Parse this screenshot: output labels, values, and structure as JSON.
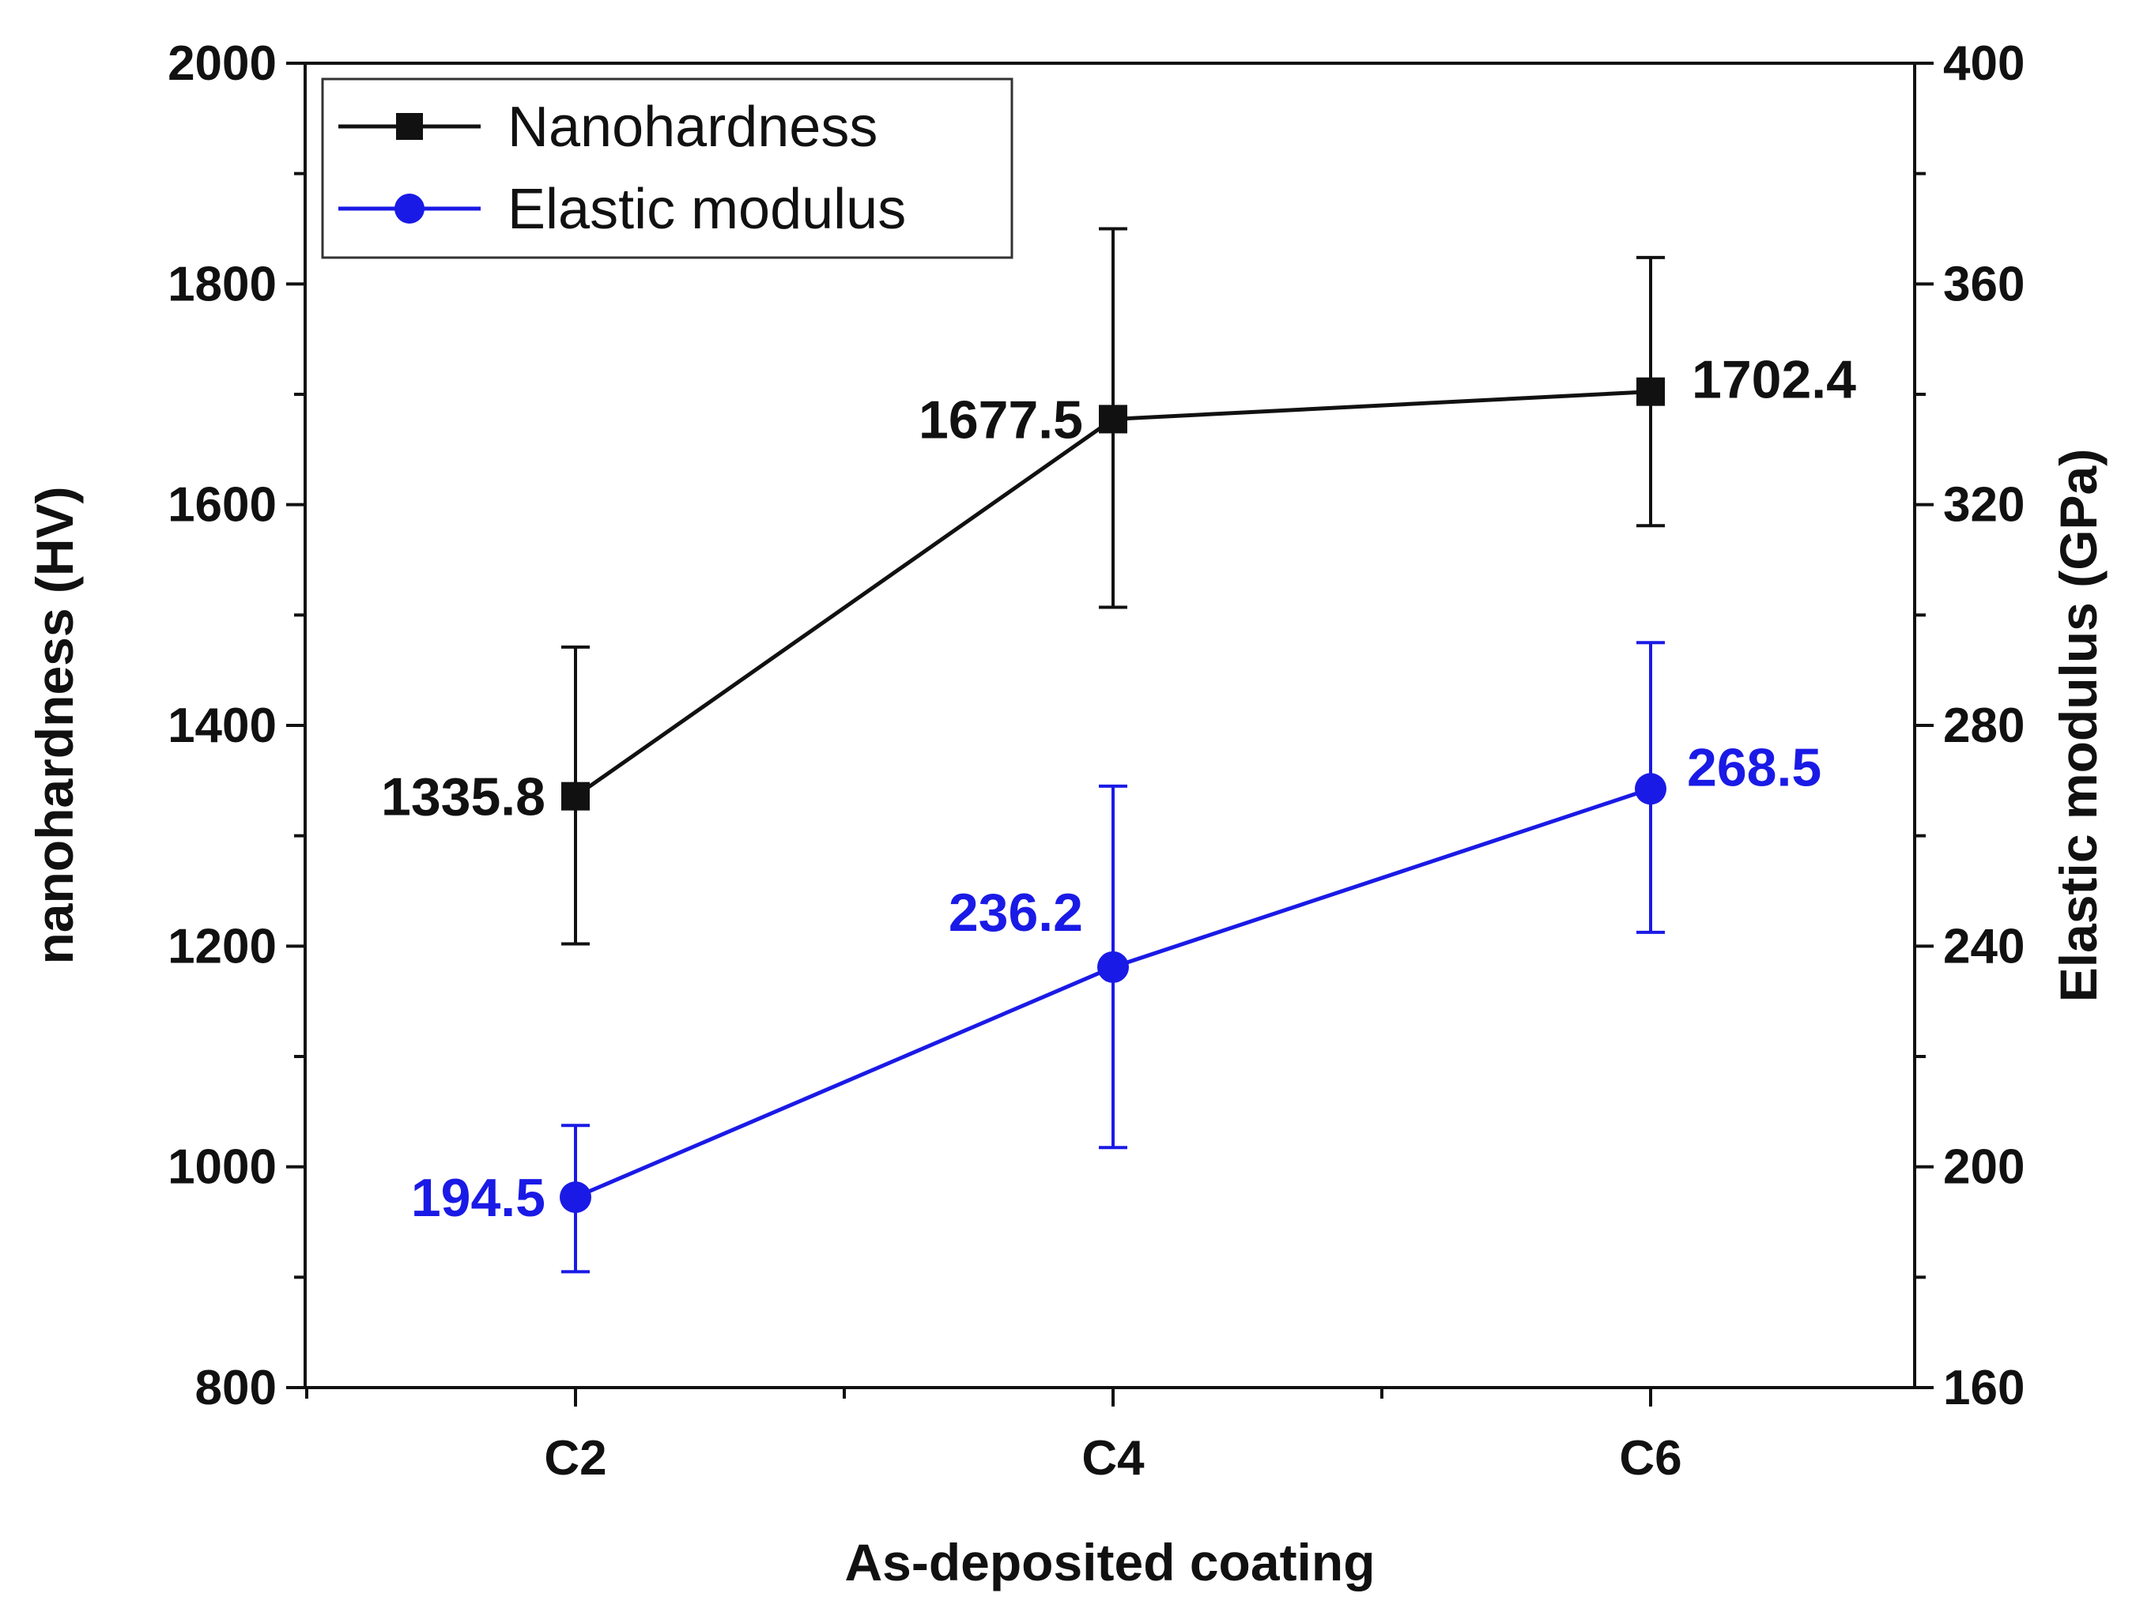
{
  "chart_data": {
    "type": "line",
    "categories": [
      "C2",
      "C4",
      "C6"
    ],
    "xlabel": "As-deposited coating",
    "y_left": {
      "label": "nanohardness (HV)",
      "range": [
        800,
        2000
      ],
      "major_ticks": [
        800,
        1000,
        1200,
        1400,
        1600,
        1800,
        2000
      ],
      "minor_step": 100
    },
    "y_right": {
      "label": "Elastic modulus (GPa)",
      "range": [
        160,
        400
      ],
      "major_ticks": [
        160,
        200,
        240,
        280,
        320,
        360,
        400
      ],
      "minor_step": 20
    },
    "series": [
      {
        "name": "Nanohardness",
        "axis": "left",
        "color": "#111111",
        "marker": "square",
        "values": [
          1335.8,
          1677.5,
          1702.4
        ],
        "err_low": [
          1202,
          1507,
          1581
        ],
        "err_high": [
          1471,
          1850,
          1824
        ],
        "labels": [
          "1335.8",
          "1677.5",
          "1702.4"
        ],
        "label_side": [
          "left",
          "left",
          "right"
        ]
      },
      {
        "name": "Elastic modulus",
        "axis": "right",
        "color": "#1a1ae6",
        "marker": "circle",
        "values": [
          194.5,
          236.2,
          268.5
        ],
        "err_low": [
          181,
          203.5,
          242.5
        ],
        "err_high": [
          207.5,
          269,
          295
        ],
        "labels": [
          "194.5",
          "236.2",
          "268.5"
        ],
        "label_side": [
          "left",
          "left-above",
          "right-above"
        ]
      }
    ],
    "legend": {
      "position": "top-left"
    }
  }
}
